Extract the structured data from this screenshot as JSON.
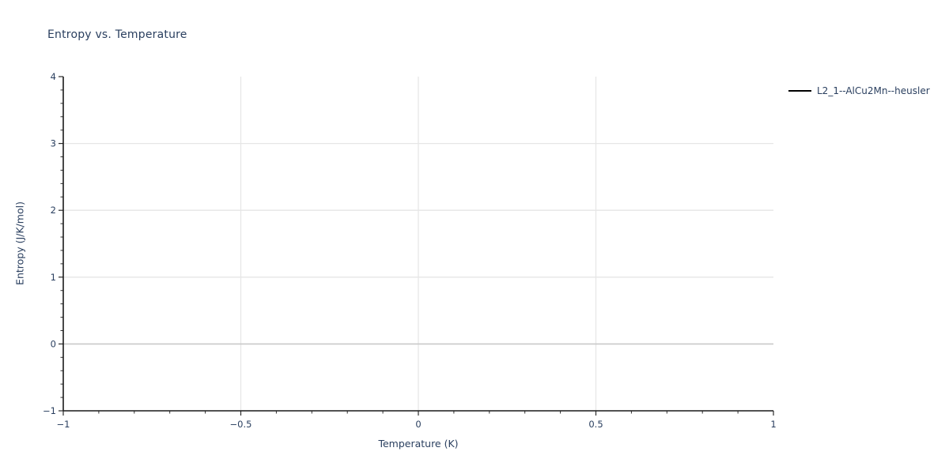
{
  "page": {
    "background": "#ffffff"
  },
  "chart_data": {
    "type": "line",
    "title": "Entropy vs. Temperature",
    "xlabel": "Temperature (K)",
    "ylabel": "Entropy (J/K/mol)",
    "xlim": [
      -1,
      1
    ],
    "ylim": [
      -1,
      4
    ],
    "x_major_ticks": [
      -1,
      -0.5,
      0,
      0.5,
      1
    ],
    "x_tick_labels": [
      "−1",
      "−0.5",
      "0",
      "0.5",
      "1"
    ],
    "x_minor_step": 0.1,
    "y_major_ticks": [
      -1,
      0,
      1,
      2,
      3,
      4
    ],
    "y_tick_labels": [
      "−1",
      "0",
      "1",
      "2",
      "3",
      "4"
    ],
    "y_minor_step": 0.2,
    "grid_on": true,
    "grid_x": [
      -0.5,
      0,
      0.5
    ],
    "grid_y": [
      1,
      2,
      3
    ],
    "zero_line_y": 0,
    "legend_position": "outside-top-right",
    "series": [
      {
        "name": "L2_1--AlCu2Mn--heusler",
        "color": "#000000",
        "x": [],
        "y": []
      }
    ],
    "colors": {
      "text": "#2a3f5f",
      "grid": "#e6e6e6",
      "zero_line": "#c9c9c9",
      "axis": "#1a1a1a",
      "tick": "#2b2b2b"
    }
  }
}
